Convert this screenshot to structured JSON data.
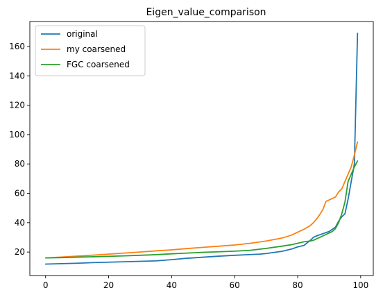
{
  "chart_data": {
    "type": "line",
    "title": "Eigen_value_comparison",
    "xlabel": "",
    "ylabel": "",
    "xlim": [
      -5,
      104
    ],
    "ylim": [
      4,
      177
    ],
    "x_ticks": [
      0,
      20,
      40,
      60,
      80,
      100
    ],
    "y_ticks": [
      20,
      40,
      60,
      80,
      100,
      120,
      140,
      160
    ],
    "grid": false,
    "legend_position": "upper-left",
    "series": [
      {
        "name": "original",
        "color": "#1f77b4",
        "x": [
          0,
          5,
          10,
          15,
          20,
          25,
          30,
          35,
          40,
          45,
          50,
          55,
          60,
          65,
          68,
          70,
          75,
          78,
          80,
          82,
          84,
          85,
          86,
          88,
          90,
          92,
          93,
          94,
          95,
          96,
          97,
          98,
          99
        ],
        "y": [
          11.8,
          12.1,
          12.4,
          12.8,
          13.1,
          13.4,
          13.7,
          14.0,
          14.8,
          15.8,
          16.5,
          17.2,
          17.8,
          18.3,
          18.6,
          19.0,
          20.5,
          22.0,
          23.5,
          24.5,
          28.0,
          30.0,
          31.0,
          32.5,
          34.0,
          37.0,
          41.0,
          44.0,
          46.0,
          56.0,
          68.0,
          80.0,
          169.0
        ]
      },
      {
        "name": "my coarsened",
        "color": "#ff7f0e",
        "x": [
          0,
          5,
          10,
          15,
          20,
          25,
          30,
          35,
          40,
          45,
          50,
          55,
          60,
          65,
          70,
          75,
          78,
          80,
          82,
          84,
          85,
          86,
          87,
          88,
          89,
          90,
          91,
          92,
          93,
          94,
          95,
          96,
          97,
          98,
          99
        ],
        "y": [
          16.0,
          16.6,
          17.2,
          17.9,
          18.6,
          19.3,
          20.0,
          20.8,
          21.5,
          22.4,
          23.2,
          24.0,
          24.8,
          26.0,
          27.5,
          29.5,
          31.5,
          33.5,
          35.5,
          38.0,
          40.0,
          42.5,
          45.5,
          49.0,
          54.5,
          55.5,
          56.5,
          57.5,
          61.0,
          63.0,
          68.0,
          73.0,
          78.0,
          86.0,
          95.0
        ]
      },
      {
        "name": "FGC coarsened",
        "color": "#2ca02c",
        "x": [
          0,
          5,
          10,
          15,
          20,
          25,
          30,
          35,
          40,
          45,
          50,
          55,
          60,
          65,
          70,
          75,
          78,
          80,
          82,
          84,
          85,
          86,
          88,
          90,
          91,
          92,
          93,
          94,
          95,
          96,
          97,
          98,
          99
        ],
        "y": [
          16.0,
          16.2,
          16.5,
          16.8,
          17.1,
          17.4,
          17.8,
          18.2,
          18.8,
          19.3,
          19.8,
          20.2,
          20.6,
          21.2,
          22.5,
          24.0,
          25.0,
          26.0,
          27.0,
          27.5,
          28.0,
          29.0,
          31.0,
          33.0,
          34.0,
          36.0,
          40.0,
          46.0,
          54.0,
          68.0,
          73.0,
          78.0,
          82.0
        ]
      }
    ]
  }
}
